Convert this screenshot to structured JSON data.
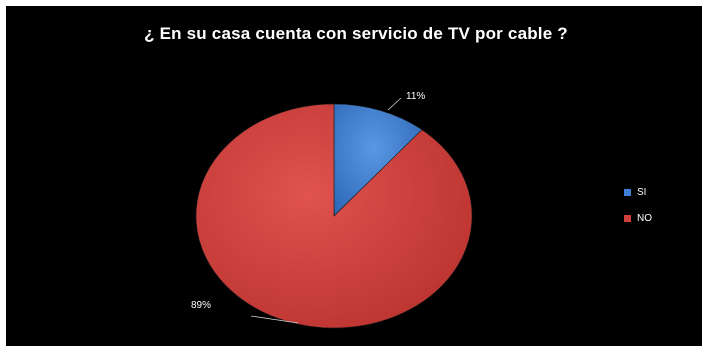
{
  "chart_data": {
    "type": "pie",
    "title": "¿ En su casa cuenta con servicio de TV por cable ?",
    "categories": [
      "SI",
      "NO"
    ],
    "values": [
      11,
      89
    ],
    "data_labels": [
      "11%",
      "89%"
    ],
    "colors": [
      "#3d7fd6",
      "#d2403d"
    ],
    "legend_position": "right"
  }
}
